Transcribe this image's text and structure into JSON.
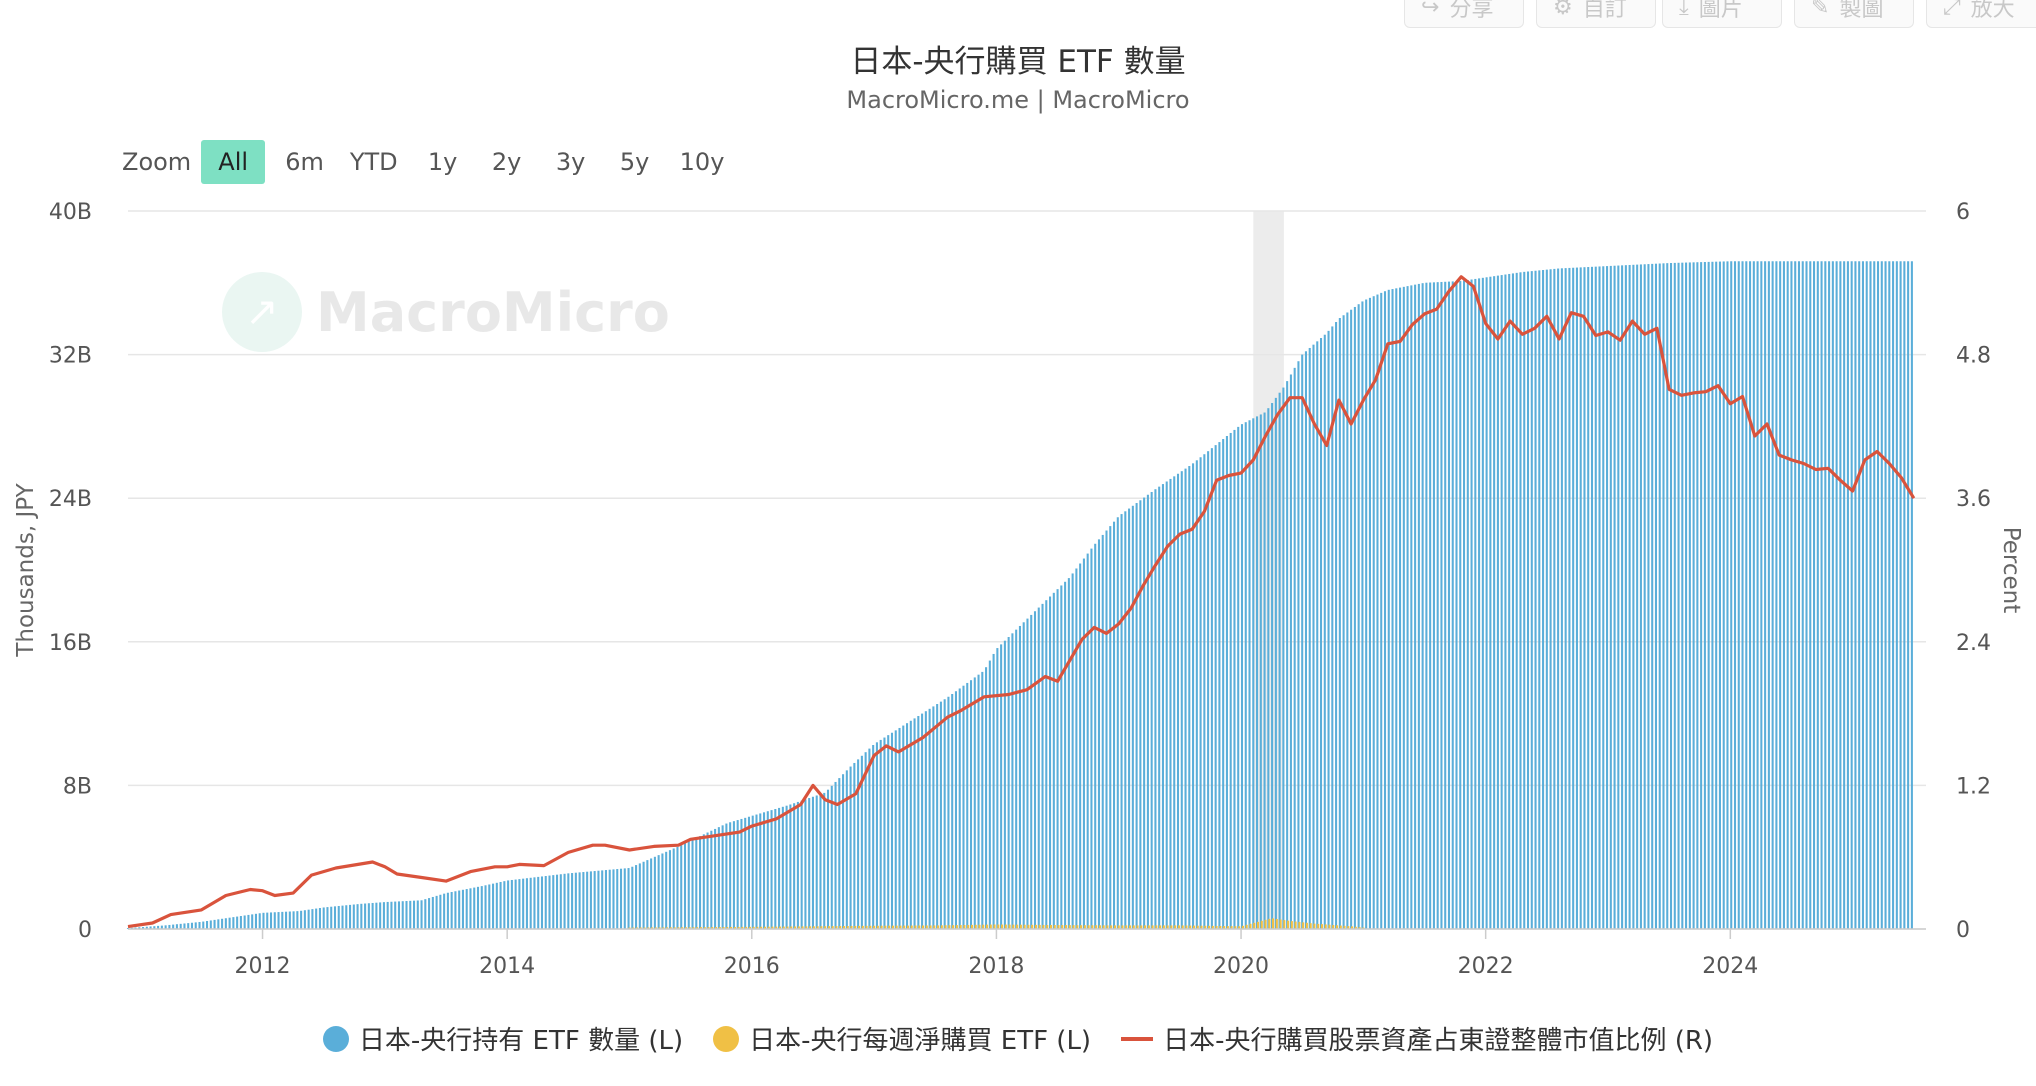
{
  "toolbar": {
    "buttons": [
      {
        "label": "分享",
        "icon": "share-icon"
      },
      {
        "label": "自訂",
        "icon": "gear-icon"
      },
      {
        "label": "圖片",
        "icon": "download-icon"
      },
      {
        "label": "製圖",
        "icon": "pencil-icon"
      },
      {
        "label": "放大",
        "icon": "expand-icon"
      }
    ]
  },
  "zoom": {
    "label": "Zoom",
    "options": [
      "All",
      "6m",
      "YTD",
      "1y",
      "2y",
      "3y",
      "5y",
      "10y"
    ],
    "selected": "All"
  },
  "watermark": "MacroMicro",
  "colors": {
    "holdings": "#5aaed9",
    "weekly": "#f0c045",
    "ratio": "#d9533c",
    "grid": "#e6e6e6",
    "recession": "#ececec",
    "zoom_active": "#7ee0c3"
  },
  "chart_data": {
    "type": "bar",
    "title": "日本-央行購買 ETF 數量",
    "subtitle": "MacroMicro.me | MacroMicro",
    "ylabel_left": "Thousands, JPY",
    "ylabel_right": "Percent",
    "x_ticks": [
      "2012",
      "2014",
      "2016",
      "2018",
      "2020",
      "2022",
      "2024"
    ],
    "y_left_ticks": [
      "0",
      "8B",
      "16B",
      "24B",
      "32B",
      "40B"
    ],
    "y_right_ticks": [
      "0",
      "1.2",
      "2.4",
      "3.6",
      "4.8",
      "6"
    ],
    "y_left_range": [
      0,
      40
    ],
    "y_right_range": [
      0,
      6
    ],
    "y_left_unit": "B (billions, thousands JPY)",
    "x_range": [
      2010.9,
      2025.6
    ],
    "recession_band": [
      2020.1,
      2020.35
    ],
    "legend_position": "bottom",
    "series": [
      {
        "name": "日本-央行持有 ETF 數量 (L)",
        "type": "bar",
        "axis": "left",
        "points": [
          [
            2010.9,
            0.05
          ],
          [
            2011.2,
            0.2
          ],
          [
            2011.5,
            0.4
          ],
          [
            2011.8,
            0.7
          ],
          [
            2012.0,
            0.9
          ],
          [
            2012.3,
            1.0
          ],
          [
            2012.5,
            1.2
          ],
          [
            2012.8,
            1.4
          ],
          [
            2013.0,
            1.5
          ],
          [
            2013.3,
            1.6
          ],
          [
            2013.5,
            2.0
          ],
          [
            2013.8,
            2.4
          ],
          [
            2014.0,
            2.7
          ],
          [
            2014.5,
            3.1
          ],
          [
            2015.0,
            3.4
          ],
          [
            2015.4,
            4.6
          ],
          [
            2015.8,
            5.9
          ],
          [
            2016.0,
            6.3
          ],
          [
            2016.3,
            6.9
          ],
          [
            2016.6,
            7.6
          ],
          [
            2016.8,
            9.0
          ],
          [
            2017.0,
            10.3
          ],
          [
            2017.3,
            11.6
          ],
          [
            2017.6,
            12.9
          ],
          [
            2017.9,
            14.4
          ],
          [
            2018.0,
            15.6
          ],
          [
            2018.3,
            17.6
          ],
          [
            2018.6,
            19.6
          ],
          [
            2018.8,
            21.4
          ],
          [
            2019.0,
            23.0
          ],
          [
            2019.3,
            24.5
          ],
          [
            2019.6,
            25.9
          ],
          [
            2019.8,
            27.0
          ],
          [
            2020.0,
            28.1
          ],
          [
            2020.2,
            28.8
          ],
          [
            2020.35,
            30.2
          ],
          [
            2020.5,
            32.0
          ],
          [
            2020.7,
            33.2
          ],
          [
            2020.8,
            34.0
          ],
          [
            2021.0,
            35.0
          ],
          [
            2021.2,
            35.6
          ],
          [
            2021.5,
            36.0
          ],
          [
            2021.8,
            36.1
          ],
          [
            2022.0,
            36.3
          ],
          [
            2022.3,
            36.6
          ],
          [
            2022.6,
            36.8
          ],
          [
            2022.9,
            36.9
          ],
          [
            2023.2,
            37.0
          ],
          [
            2023.5,
            37.1
          ],
          [
            2024.0,
            37.2
          ],
          [
            2024.5,
            37.2
          ],
          [
            2025.0,
            37.2
          ],
          [
            2025.5,
            37.2
          ]
        ]
      },
      {
        "name": "日本-央行每週淨購買 ETF (L)",
        "type": "bar",
        "axis": "left",
        "points": [
          [
            2015.0,
            0.08
          ],
          [
            2016.0,
            0.12
          ],
          [
            2016.5,
            0.15
          ],
          [
            2017.0,
            0.18
          ],
          [
            2017.5,
            0.2
          ],
          [
            2018.0,
            0.25
          ],
          [
            2018.5,
            0.22
          ],
          [
            2019.0,
            0.2
          ],
          [
            2019.5,
            0.2
          ],
          [
            2020.0,
            0.15
          ],
          [
            2020.25,
            0.6
          ],
          [
            2020.4,
            0.45
          ],
          [
            2020.6,
            0.3
          ],
          [
            2020.9,
            0.15
          ],
          [
            2021.0,
            0.08
          ]
        ]
      },
      {
        "name": "日本-央行購買股票資產占東證整體市值比例 (R)",
        "type": "line",
        "axis": "right",
        "points": [
          [
            2010.9,
            0.02
          ],
          [
            2011.1,
            0.05
          ],
          [
            2011.25,
            0.12
          ],
          [
            2011.5,
            0.16
          ],
          [
            2011.7,
            0.28
          ],
          [
            2011.9,
            0.33
          ],
          [
            2012.0,
            0.32
          ],
          [
            2012.1,
            0.28
          ],
          [
            2012.25,
            0.3
          ],
          [
            2012.4,
            0.45
          ],
          [
            2012.6,
            0.51
          ],
          [
            2012.9,
            0.56
          ],
          [
            2013.0,
            0.52
          ],
          [
            2013.1,
            0.46
          ],
          [
            2013.3,
            0.43
          ],
          [
            2013.5,
            0.4
          ],
          [
            2013.7,
            0.48
          ],
          [
            2013.9,
            0.52
          ],
          [
            2014.0,
            0.52
          ],
          [
            2014.1,
            0.54
          ],
          [
            2014.3,
            0.53
          ],
          [
            2014.5,
            0.64
          ],
          [
            2014.7,
            0.7
          ],
          [
            2014.8,
            0.7
          ],
          [
            2015.0,
            0.66
          ],
          [
            2015.2,
            0.69
          ],
          [
            2015.4,
            0.7
          ],
          [
            2015.5,
            0.75
          ],
          [
            2015.7,
            0.78
          ],
          [
            2015.9,
            0.81
          ],
          [
            2016.0,
            0.86
          ],
          [
            2016.2,
            0.92
          ],
          [
            2016.4,
            1.04
          ],
          [
            2016.5,
            1.2
          ],
          [
            2016.6,
            1.08
          ],
          [
            2016.7,
            1.04
          ],
          [
            2016.85,
            1.13
          ],
          [
            2017.0,
            1.45
          ],
          [
            2017.1,
            1.53
          ],
          [
            2017.2,
            1.48
          ],
          [
            2017.4,
            1.6
          ],
          [
            2017.6,
            1.77
          ],
          [
            2017.7,
            1.82
          ],
          [
            2017.9,
            1.94
          ],
          [
            2018.1,
            1.96
          ],
          [
            2018.25,
            2.0
          ],
          [
            2018.4,
            2.11
          ],
          [
            2018.5,
            2.07
          ],
          [
            2018.7,
            2.42
          ],
          [
            2018.8,
            2.52
          ],
          [
            2018.9,
            2.47
          ],
          [
            2019.0,
            2.55
          ],
          [
            2019.1,
            2.68
          ],
          [
            2019.2,
            2.87
          ],
          [
            2019.3,
            3.04
          ],
          [
            2019.4,
            3.2
          ],
          [
            2019.5,
            3.3
          ],
          [
            2019.6,
            3.34
          ],
          [
            2019.7,
            3.49
          ],
          [
            2019.8,
            3.75
          ],
          [
            2019.9,
            3.79
          ],
          [
            2020.0,
            3.81
          ],
          [
            2020.1,
            3.92
          ],
          [
            2020.2,
            4.12
          ],
          [
            2020.3,
            4.3
          ],
          [
            2020.4,
            4.44
          ],
          [
            2020.5,
            4.44
          ],
          [
            2020.6,
            4.22
          ],
          [
            2020.7,
            4.04
          ],
          [
            2020.8,
            4.42
          ],
          [
            2020.9,
            4.22
          ],
          [
            2021.0,
            4.42
          ],
          [
            2021.1,
            4.59
          ],
          [
            2021.2,
            4.89
          ],
          [
            2021.3,
            4.91
          ],
          [
            2021.4,
            5.05
          ],
          [
            2021.5,
            5.14
          ],
          [
            2021.6,
            5.18
          ],
          [
            2021.7,
            5.33
          ],
          [
            2021.8,
            5.45
          ],
          [
            2021.9,
            5.37
          ],
          [
            2022.0,
            5.06
          ],
          [
            2022.1,
            4.93
          ],
          [
            2022.2,
            5.08
          ],
          [
            2022.3,
            4.97
          ],
          [
            2022.4,
            5.02
          ],
          [
            2022.5,
            5.12
          ],
          [
            2022.6,
            4.93
          ],
          [
            2022.7,
            5.15
          ],
          [
            2022.8,
            5.12
          ],
          [
            2022.9,
            4.96
          ],
          [
            2023.0,
            4.99
          ],
          [
            2023.1,
            4.92
          ],
          [
            2023.2,
            5.08
          ],
          [
            2023.3,
            4.97
          ],
          [
            2023.4,
            5.02
          ],
          [
            2023.5,
            4.51
          ],
          [
            2023.6,
            4.46
          ],
          [
            2023.7,
            4.48
          ],
          [
            2023.8,
            4.49
          ],
          [
            2023.9,
            4.54
          ],
          [
            2024.0,
            4.39
          ],
          [
            2024.1,
            4.45
          ],
          [
            2024.2,
            4.12
          ],
          [
            2024.3,
            4.22
          ],
          [
            2024.4,
            3.96
          ],
          [
            2024.5,
            3.92
          ],
          [
            2024.6,
            3.89
          ],
          [
            2024.7,
            3.84
          ],
          [
            2024.8,
            3.85
          ],
          [
            2024.9,
            3.75
          ],
          [
            2025.0,
            3.66
          ],
          [
            2025.1,
            3.92
          ],
          [
            2025.2,
            3.99
          ],
          [
            2025.3,
            3.89
          ],
          [
            2025.4,
            3.77
          ],
          [
            2025.5,
            3.6
          ]
        ]
      }
    ]
  }
}
